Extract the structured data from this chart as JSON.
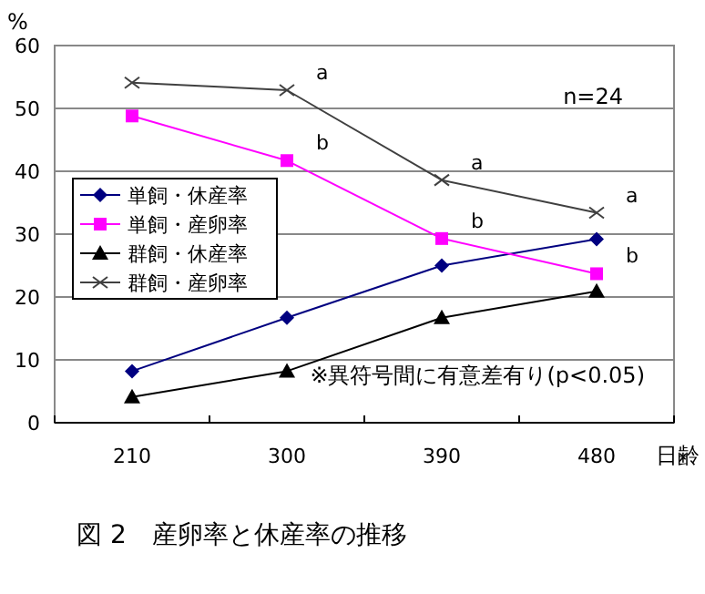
{
  "chart_data": {
    "type": "line",
    "title": "図 2　産卵率と休産率の推移",
    "xlabel": "日齢",
    "ylabel": "%",
    "categories": [
      "210",
      "300",
      "390",
      "480"
    ],
    "series": [
      {
        "name": "単飼・休産率",
        "color": "#000080",
        "marker": "diamond",
        "values": [
          8.2,
          16.7,
          25,
          29.2
        ]
      },
      {
        "name": "単飼・産卵率",
        "color": "#ff00ff",
        "marker": "square",
        "values": [
          48.8,
          41.7,
          29.3,
          23.7
        ]
      },
      {
        "name": "群飼・休産率",
        "color": "#000000",
        "marker": "triangle",
        "values": [
          4.1,
          8.2,
          16.7,
          20.9
        ]
      },
      {
        "name": "群飼・産卵率",
        "color": "#404040",
        "marker": "cross",
        "values": [
          54.1,
          52.9,
          38.6,
          33.4
        ]
      }
    ],
    "ylim": [
      0,
      60
    ],
    "yticks": [
      0,
      10,
      20,
      30,
      40,
      50,
      60
    ],
    "grid": "y",
    "legend": "left",
    "annotations": [
      "n=24",
      "※異符号間に有意差有り(p<0.05)",
      {
        "text": "a",
        "x": "300",
        "y": 52.9
      },
      {
        "text": "b",
        "x": "300",
        "y": 41.7
      },
      {
        "text": "a",
        "x": "390",
        "y": 38.6
      },
      {
        "text": "b",
        "x": "390",
        "y": 29.3
      },
      {
        "text": "a",
        "x": "480",
        "y": 33.4
      },
      {
        "text": "b",
        "x": "480",
        "y": 23.7
      }
    ]
  }
}
